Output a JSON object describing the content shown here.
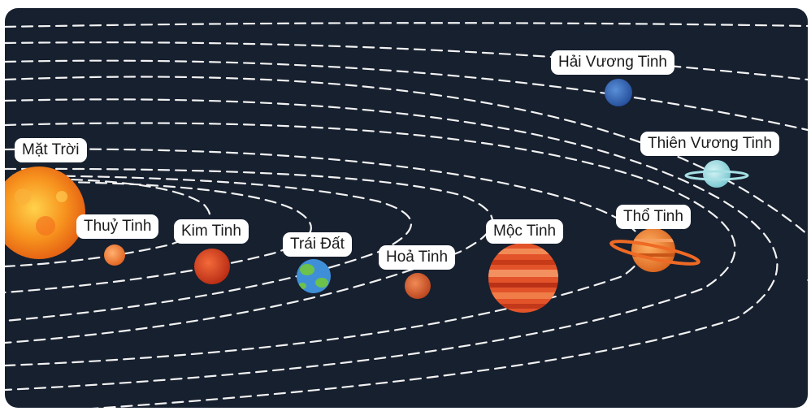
{
  "colors": {
    "background": "#17202f",
    "orbit": "#f2f2f2",
    "label_bg": "#ffffff",
    "label_text": "#1b1b1b"
  },
  "bodies": [
    {
      "id": "sun",
      "label": "Mặt Trời",
      "icon": "sun-icon"
    },
    {
      "id": "mercury",
      "label": "Thuỷ Tinh",
      "icon": "mercury-icon"
    },
    {
      "id": "venus",
      "label": "Kim Tinh",
      "icon": "venus-icon"
    },
    {
      "id": "earth",
      "label": "Trái Đất",
      "icon": "earth-icon"
    },
    {
      "id": "mars",
      "label": "Hoả Tinh",
      "icon": "mars-icon"
    },
    {
      "id": "jupiter",
      "label": "Mộc Tinh",
      "icon": "jupiter-icon"
    },
    {
      "id": "saturn",
      "label": "Thổ Tinh",
      "icon": "saturn-icon"
    },
    {
      "id": "uranus",
      "label": "Thiên Vương Tinh",
      "icon": "uranus-icon"
    },
    {
      "id": "neptune",
      "label": "Hải Vương Tinh",
      "icon": "neptune-icon"
    }
  ]
}
